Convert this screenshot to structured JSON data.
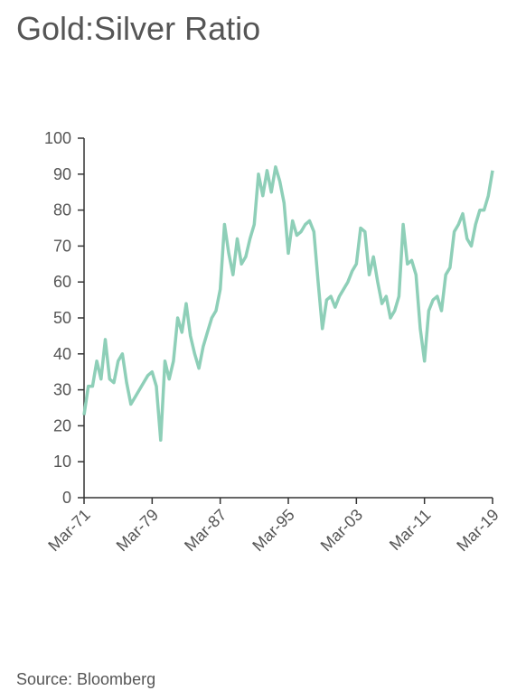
{
  "chart_data": {
    "type": "line",
    "title": "Gold:Silver Ratio",
    "source": "Source: Bloomberg",
    "categories": [
      "Mar-71",
      null,
      null,
      null,
      null,
      null,
      null,
      null,
      null,
      null,
      null,
      null,
      null,
      null,
      null,
      null,
      "Mar-79",
      null,
      null,
      null,
      null,
      null,
      null,
      null,
      null,
      null,
      null,
      null,
      null,
      null,
      null,
      null,
      "Mar-87",
      null,
      null,
      null,
      null,
      null,
      null,
      null,
      null,
      null,
      null,
      null,
      null,
      null,
      null,
      null,
      "Mar-95",
      null,
      null,
      null,
      null,
      null,
      null,
      null,
      null,
      null,
      null,
      null,
      null,
      null,
      null,
      null,
      "Mar-03",
      null,
      null,
      null,
      null,
      null,
      null,
      null,
      null,
      null,
      null,
      null,
      null,
      null,
      null,
      null,
      "Mar-11",
      null,
      null,
      null,
      null,
      null,
      null,
      null,
      null,
      null,
      null,
      null,
      null,
      null,
      null,
      null,
      "Mar-19"
    ],
    "series": [
      {
        "name": "Gold:Silver Ratio",
        "color": "#8ecfb8",
        "values": [
          23,
          31,
          31,
          38,
          33,
          44,
          33,
          32,
          38,
          40,
          32,
          26,
          28,
          30,
          32,
          34,
          35,
          31,
          16,
          38,
          33,
          38,
          50,
          46,
          54,
          45,
          40,
          36,
          42,
          46,
          50,
          52,
          58,
          76,
          68,
          62,
          72,
          65,
          67,
          72,
          76,
          90,
          84,
          91,
          85,
          92,
          88,
          82,
          68,
          77,
          73,
          74,
          76,
          77,
          74,
          60,
          47,
          55,
          56,
          53,
          56,
          58,
          60,
          63,
          65,
          75,
          74,
          62,
          67,
          60,
          54,
          56,
          50,
          52,
          56,
          76,
          65,
          66,
          62,
          47,
          38,
          52,
          55,
          56,
          52,
          62,
          64,
          74,
          76,
          79,
          72,
          70,
          76,
          80,
          80,
          84,
          91
        ]
      }
    ],
    "ylim": [
      0,
      100
    ],
    "yticks": [
      0,
      10,
      20,
      30,
      40,
      50,
      60,
      70,
      80,
      90,
      100
    ]
  }
}
